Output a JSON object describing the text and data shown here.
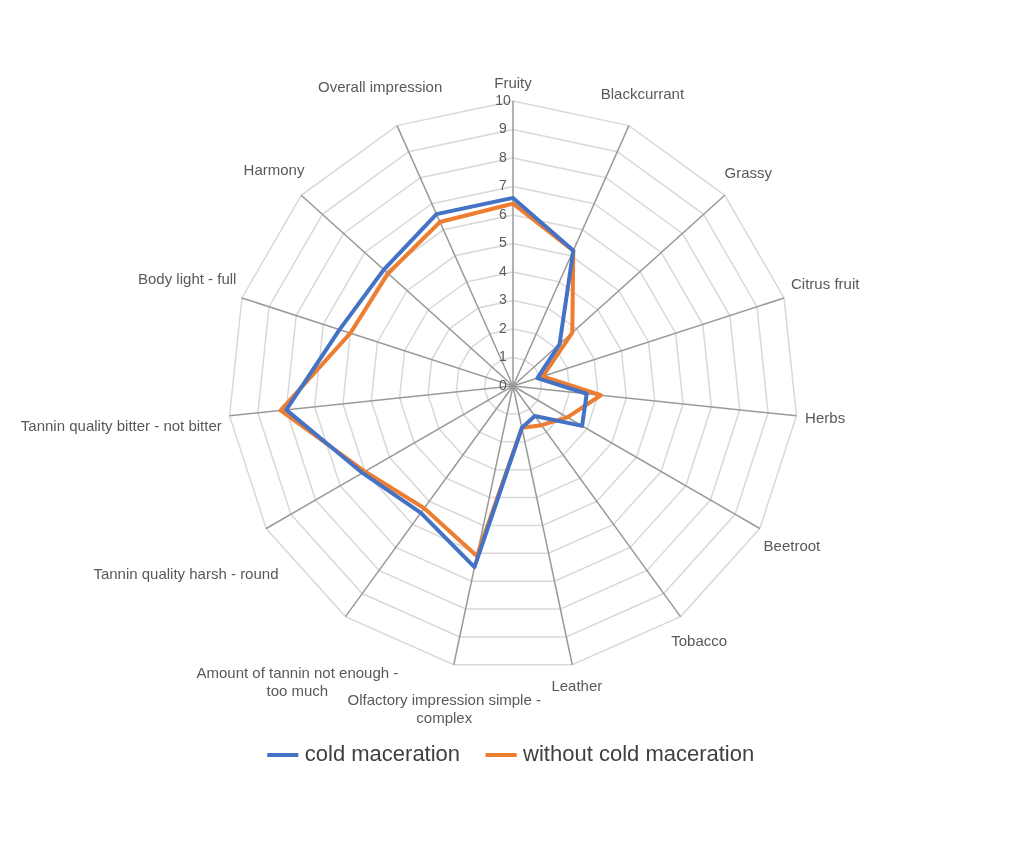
{
  "chart_data": {
    "type": "radar",
    "categories": [
      "Fruity",
      "Blackcurrant",
      "Grassy",
      "Citrus fruit",
      "Herbs",
      "Beetroot",
      "Tobacco",
      "Leather",
      "Olfactory impression simple - complex",
      "Amount of tannin not enough - too much",
      "Tannin quality harsh - round",
      "Tannin quality bitter - not bitter",
      "Body light - full",
      "Harmony",
      "Overall impression"
    ],
    "series": [
      {
        "name": "cold maceration",
        "color": "#4472c4",
        "values": [
          6.6,
          5.2,
          2.2,
          0.9,
          2.6,
          2.8,
          1.3,
          1.5,
          6.5,
          5.5,
          6.1,
          8.0,
          6.4,
          6.1,
          6.6
        ]
      },
      {
        "name": "without cold maceration",
        "color": "#ed7d31",
        "values": [
          6.4,
          5.2,
          2.8,
          1.1,
          3.1,
          2.2,
          1.7,
          1.5,
          6.1,
          5.3,
          6.0,
          8.2,
          6.0,
          5.9,
          6.3
        ]
      }
    ],
    "ylim": [
      0,
      10
    ],
    "yticks": [
      0,
      1,
      2,
      3,
      4,
      5,
      6,
      7,
      8,
      9,
      10
    ],
    "grid": true,
    "legend": "bottom",
    "marker": "none"
  }
}
